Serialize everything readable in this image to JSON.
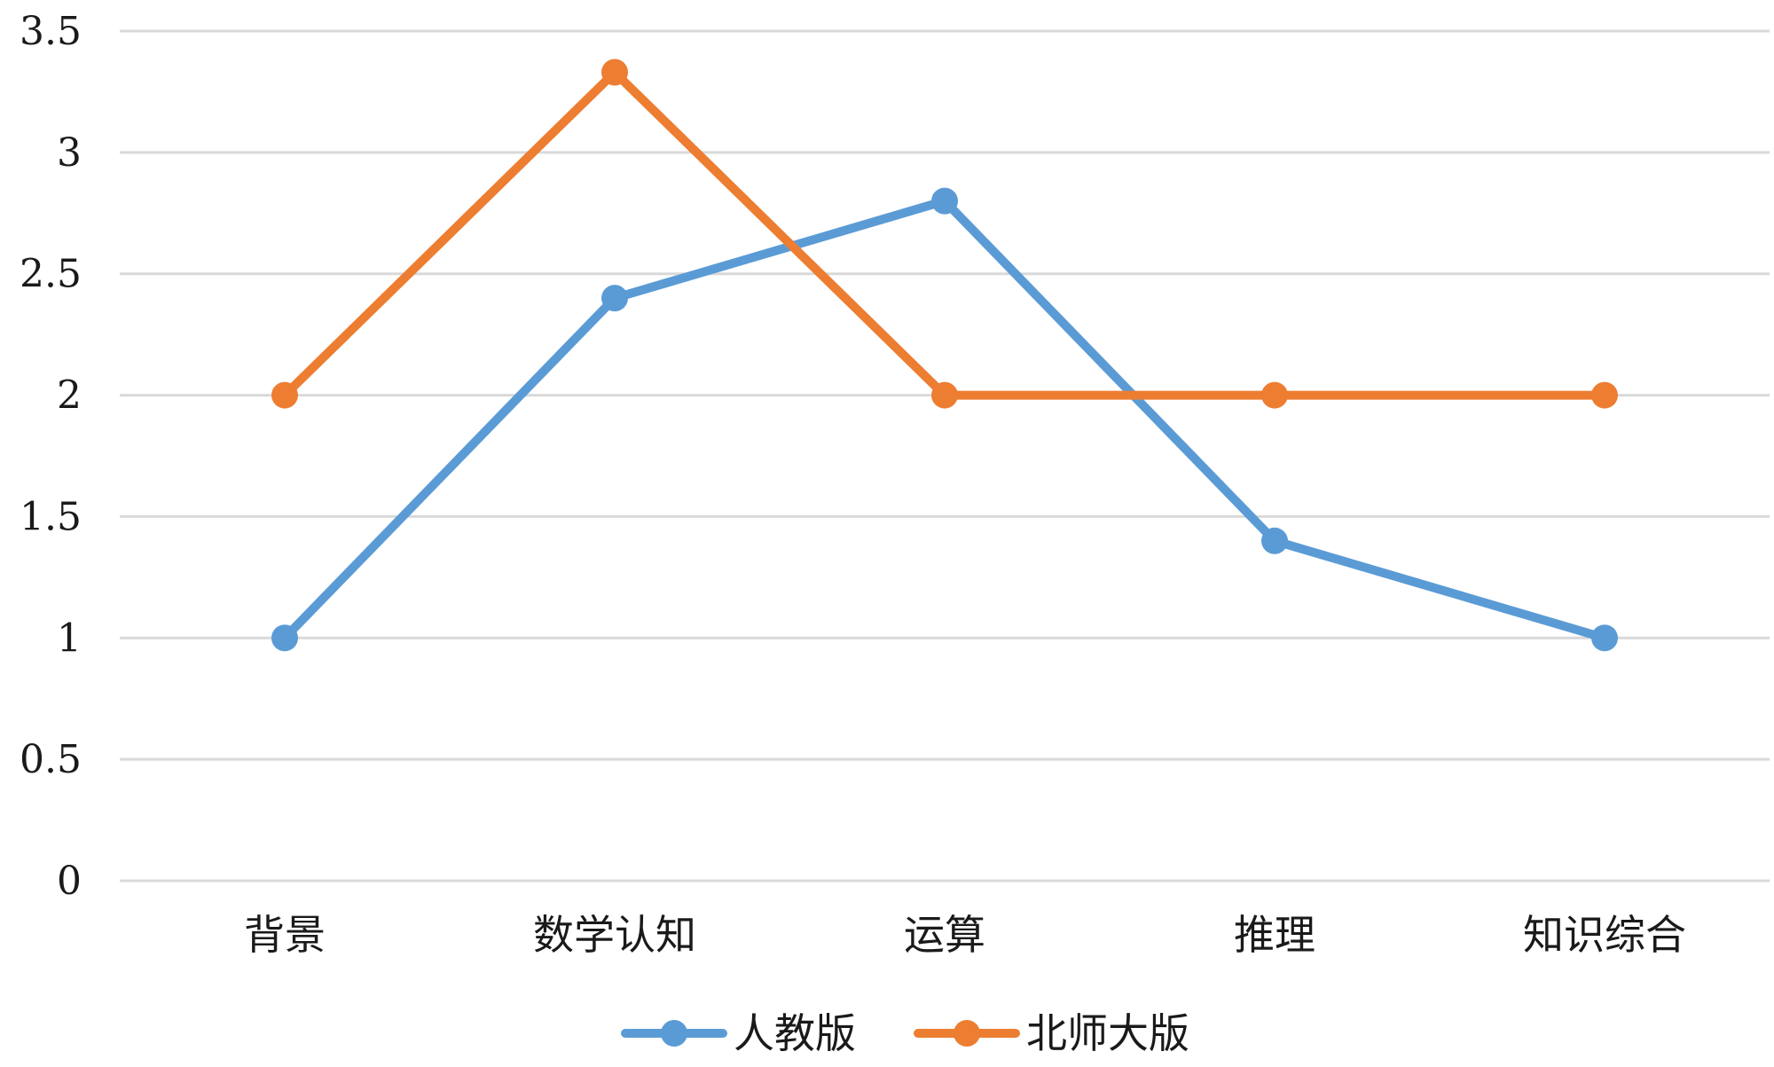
{
  "chart_data": {
    "type": "line",
    "title": "",
    "xlabel": "",
    "ylabel": "",
    "categories": [
      "背景",
      "数学认知",
      "运算",
      "推理",
      "知识综合"
    ],
    "series": [
      {
        "name": "人教版",
        "values": [
          1,
          2.4,
          2.8,
          1.4,
          1
        ],
        "color": "#5b9bd5"
      },
      {
        "name": "北师大版",
        "values": [
          2,
          3.33,
          2,
          2,
          2
        ],
        "color": "#ed7d31"
      }
    ],
    "ylim": [
      0,
      3.5
    ],
    "yticks": [
      0,
      0.5,
      1,
      1.5,
      2,
      2.5,
      3,
      3.5
    ],
    "grid": true,
    "legend_position": "bottom",
    "markers": true
  }
}
